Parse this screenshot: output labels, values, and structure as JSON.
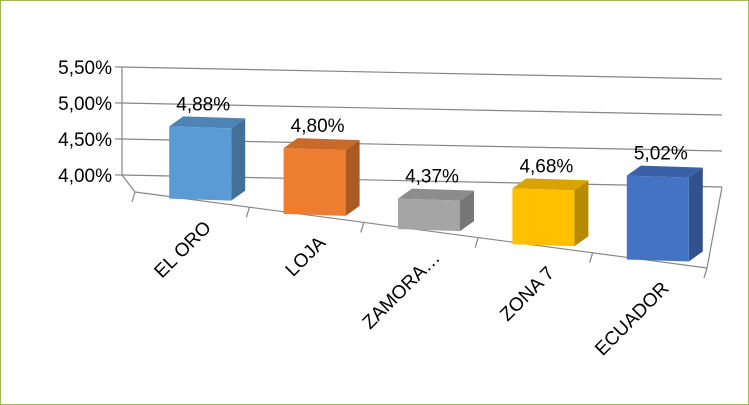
{
  "chart_data": {
    "type": "bar",
    "title": "",
    "xlabel": "",
    "ylabel": "",
    "categories": [
      "EL ORO",
      "LOJA",
      "ZAMORA…",
      "ZONA 7",
      "ECUADOR"
    ],
    "values": [
      4.88,
      4.8,
      4.37,
      4.68,
      5.02
    ],
    "data_labels": [
      "4,88%",
      "4,80%",
      "4,37%",
      "4,68%",
      "5,02%"
    ],
    "y_ticks": [
      "4,00%",
      "4,50%",
      "5,00%",
      "5,50%"
    ],
    "ylim": [
      4.0,
      5.5
    ],
    "grid": true,
    "legend": false,
    "style": "3d-columns",
    "colors": [
      "#5b9bd5",
      "#ed7d31",
      "#a5a5a5",
      "#ffc000",
      "#4472c4"
    ],
    "frame_color": "#9bbb59"
  }
}
